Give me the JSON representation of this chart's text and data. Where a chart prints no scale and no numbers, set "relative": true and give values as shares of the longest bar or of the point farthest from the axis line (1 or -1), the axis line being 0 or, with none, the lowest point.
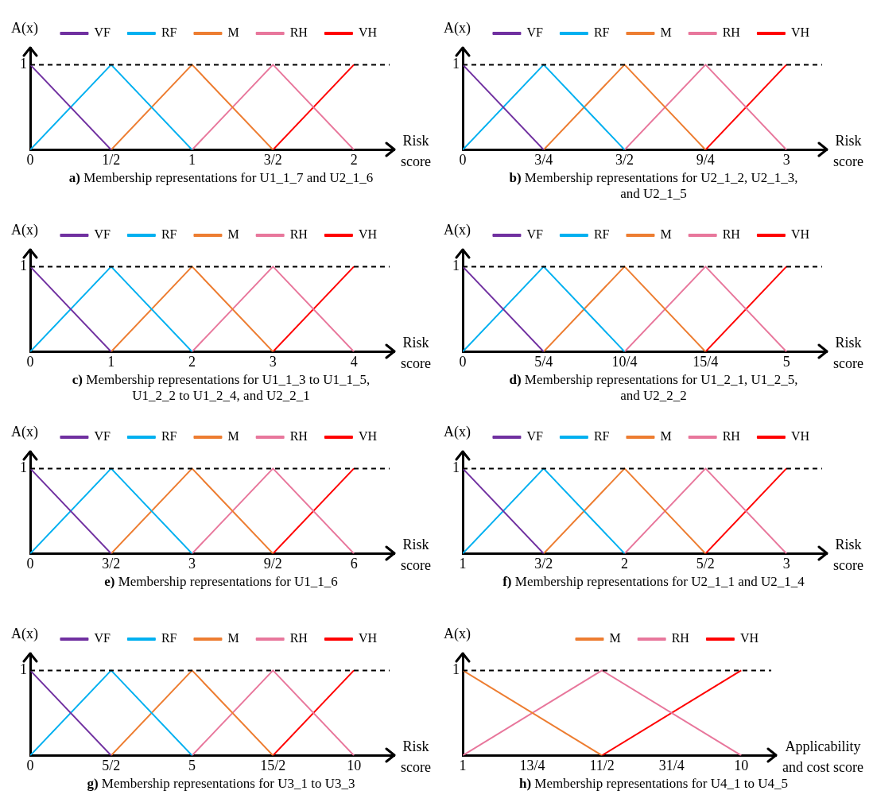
{
  "chart_data": [
    {
      "type": "line",
      "title": "a) Membership representations for U1_1_7 and U2_1_6",
      "xlabel": "Risk score",
      "ylabel": "A(x)",
      "relative": true,
      "legend": "top",
      "marker": "none",
      "grid": false,
      "xlim": [
        0,
        2.25
      ],
      "xticks": [
        0,
        {
          "value": 0.5,
          "label": "1/2"
        },
        1,
        {
          "value": 1.5,
          "label": "3/2"
        },
        2
      ],
      "ref_lines": [
        {
          "axis": "y",
          "value": 1,
          "label": "1",
          "line_style": "dashed",
          "color": "#000000"
        }
      ],
      "series": [
        {
          "name": "VF",
          "color": "#7030a0",
          "x": [
            0,
            0.5
          ],
          "values": [
            1,
            0
          ]
        },
        {
          "name": "RF",
          "color": "#00b0f0",
          "x": [
            0,
            0.5,
            1
          ],
          "values": [
            0,
            1,
            0
          ]
        },
        {
          "name": "M",
          "color": "#ed7d31",
          "x": [
            0.5,
            1,
            1.5
          ],
          "values": [
            0,
            1,
            0
          ]
        },
        {
          "name": "RH",
          "color": "#e8779c",
          "x": [
            1,
            1.5,
            2
          ],
          "values": [
            0,
            1,
            0
          ]
        },
        {
          "name": "VH",
          "color": "#ff0000",
          "x": [
            1.5,
            2
          ],
          "values": [
            0,
            1
          ]
        }
      ]
    },
    {
      "type": "line",
      "title": "b) Membership representations for U2_1_2, U2_1_3, and U2_1_5",
      "xlabel": "Risk score",
      "ylabel": "A(x)",
      "relative": true,
      "legend": "top",
      "marker": "none",
      "grid": false,
      "xlim": [
        0,
        3.375
      ],
      "xticks": [
        0,
        {
          "value": 0.75,
          "label": "3/4"
        },
        {
          "value": 1.5,
          "label": "3/2"
        },
        {
          "value": 2.25,
          "label": "9/4"
        },
        3
      ],
      "ref_lines": [
        {
          "axis": "y",
          "value": 1,
          "label": "1",
          "line_style": "dashed",
          "color": "#000000"
        }
      ],
      "series": [
        {
          "name": "VF",
          "color": "#7030a0",
          "x": [
            0,
            0.75
          ],
          "values": [
            1,
            0
          ]
        },
        {
          "name": "RF",
          "color": "#00b0f0",
          "x": [
            0,
            0.75,
            1.5
          ],
          "values": [
            0,
            1,
            0
          ]
        },
        {
          "name": "M",
          "color": "#ed7d31",
          "x": [
            0.75,
            1.5,
            2.25
          ],
          "values": [
            0,
            1,
            0
          ]
        },
        {
          "name": "RH",
          "color": "#e8779c",
          "x": [
            1.5,
            2.25,
            3
          ],
          "values": [
            0,
            1,
            0
          ]
        },
        {
          "name": "VH",
          "color": "#ff0000",
          "x": [
            2.25,
            3
          ],
          "values": [
            0,
            1
          ]
        }
      ]
    },
    {
      "type": "line",
      "title": "c) Membership representations for U1_1_3 to U1_1_5, U1_2_2 to U1_2_4, and U2_2_1",
      "xlabel": "Risk score",
      "ylabel": "A(x)",
      "relative": true,
      "legend": "top",
      "marker": "none",
      "grid": false,
      "xlim": [
        0,
        4.5
      ],
      "xticks": [
        0,
        1,
        2,
        3,
        4
      ],
      "ref_lines": [
        {
          "axis": "y",
          "value": 1,
          "label": "1",
          "line_style": "dashed",
          "color": "#000000"
        }
      ],
      "series": [
        {
          "name": "VF",
          "color": "#7030a0",
          "x": [
            0,
            1
          ],
          "values": [
            1,
            0
          ]
        },
        {
          "name": "RF",
          "color": "#00b0f0",
          "x": [
            0,
            1,
            2
          ],
          "values": [
            0,
            1,
            0
          ]
        },
        {
          "name": "M",
          "color": "#ed7d31",
          "x": [
            1,
            2,
            3
          ],
          "values": [
            0,
            1,
            0
          ]
        },
        {
          "name": "RH",
          "color": "#e8779c",
          "x": [
            2,
            3,
            4
          ],
          "values": [
            0,
            1,
            0
          ]
        },
        {
          "name": "VH",
          "color": "#ff0000",
          "x": [
            3,
            4
          ],
          "values": [
            0,
            1
          ]
        }
      ]
    },
    {
      "type": "line",
      "title": "d) Membership representations for U1_2_1, U1_2_5, and U2_2_2",
      "xlabel": "Risk score",
      "ylabel": "A(x)",
      "relative": true,
      "legend": "top",
      "marker": "none",
      "grid": false,
      "xlim": [
        0,
        5.625
      ],
      "xticks": [
        0,
        {
          "value": 1.25,
          "label": "5/4"
        },
        {
          "value": 2.5,
          "label": "10/4"
        },
        {
          "value": 3.75,
          "label": "15/4"
        },
        5
      ],
      "ref_lines": [
        {
          "axis": "y",
          "value": 1,
          "label": "1",
          "line_style": "dashed",
          "color": "#000000"
        }
      ],
      "series": [
        {
          "name": "VF",
          "color": "#7030a0",
          "x": [
            0,
            1.25
          ],
          "values": [
            1,
            0
          ]
        },
        {
          "name": "RF",
          "color": "#00b0f0",
          "x": [
            0,
            1.25,
            2.5
          ],
          "values": [
            0,
            1,
            0
          ]
        },
        {
          "name": "M",
          "color": "#ed7d31",
          "x": [
            1.25,
            2.5,
            3.75
          ],
          "values": [
            0,
            1,
            0
          ]
        },
        {
          "name": "RH",
          "color": "#e8779c",
          "x": [
            2.5,
            3.75,
            5
          ],
          "values": [
            0,
            1,
            0
          ]
        },
        {
          "name": "VH",
          "color": "#ff0000",
          "x": [
            3.75,
            5
          ],
          "values": [
            0,
            1
          ]
        }
      ]
    },
    {
      "type": "line",
      "title": "e) Membership representations for U1_1_6",
      "xlabel": "Risk score",
      "ylabel": "A(x)",
      "relative": true,
      "legend": "top",
      "marker": "none",
      "grid": false,
      "xlim": [
        0,
        6.75
      ],
      "xticks": [
        0,
        {
          "value": 1.5,
          "label": "3/2"
        },
        3,
        {
          "value": 4.5,
          "label": "9/2"
        },
        6
      ],
      "ref_lines": [
        {
          "axis": "y",
          "value": 1,
          "label": "1",
          "line_style": "dashed",
          "color": "#000000"
        }
      ],
      "series": [
        {
          "name": "VF",
          "color": "#7030a0",
          "x": [
            0,
            1.5
          ],
          "values": [
            1,
            0
          ]
        },
        {
          "name": "RF",
          "color": "#00b0f0",
          "x": [
            0,
            1.5,
            3
          ],
          "values": [
            0,
            1,
            0
          ]
        },
        {
          "name": "M",
          "color": "#ed7d31",
          "x": [
            1.5,
            3,
            4.5
          ],
          "values": [
            0,
            1,
            0
          ]
        },
        {
          "name": "RH",
          "color": "#e8779c",
          "x": [
            3,
            4.5,
            6
          ],
          "values": [
            0,
            1,
            0
          ]
        },
        {
          "name": "VH",
          "color": "#ff0000",
          "x": [
            4.5,
            6
          ],
          "values": [
            0,
            1
          ]
        }
      ]
    },
    {
      "type": "line",
      "title": "f) Membership representations for U2_1_1 and U2_1_4",
      "xlabel": "Risk score",
      "ylabel": "A(x)",
      "relative": true,
      "legend": "top",
      "marker": "none",
      "grid": false,
      "xlim": [
        1,
        3.25
      ],
      "xticks": [
        1,
        {
          "value": 1.5,
          "label": "3/2"
        },
        2,
        {
          "value": 2.5,
          "label": "5/2"
        },
        3
      ],
      "ref_lines": [
        {
          "axis": "y",
          "value": 1,
          "label": "1",
          "line_style": "dashed",
          "color": "#000000"
        }
      ],
      "series": [
        {
          "name": "VF",
          "color": "#7030a0",
          "x": [
            1,
            1.5
          ],
          "values": [
            1,
            0
          ]
        },
        {
          "name": "RF",
          "color": "#00b0f0",
          "x": [
            1,
            1.5,
            2
          ],
          "values": [
            0,
            1,
            0
          ]
        },
        {
          "name": "M",
          "color": "#ed7d31",
          "x": [
            1.5,
            2,
            2.5
          ],
          "values": [
            0,
            1,
            0
          ]
        },
        {
          "name": "RH",
          "color": "#e8779c",
          "x": [
            2,
            2.5,
            3
          ],
          "values": [
            0,
            1,
            0
          ]
        },
        {
          "name": "VH",
          "color": "#ff0000",
          "x": [
            2.5,
            3
          ],
          "values": [
            0,
            1
          ]
        }
      ]
    },
    {
      "type": "line",
      "title": "g) Membership representations for U3_1 to U3_3",
      "xlabel": "Risk score",
      "ylabel": "A(x)",
      "relative": true,
      "legend": "top",
      "marker": "none",
      "grid": false,
      "xlim": [
        0,
        11.25
      ],
      "xticks": [
        0,
        {
          "value": 2.5,
          "label": "5/2"
        },
        5,
        {
          "value": 7.5,
          "label": "15/2"
        },
        10
      ],
      "ref_lines": [
        {
          "axis": "y",
          "value": 1,
          "label": "1",
          "line_style": "dashed",
          "color": "#000000"
        }
      ],
      "series": [
        {
          "name": "VF",
          "color": "#7030a0",
          "x": [
            0,
            2.5
          ],
          "values": [
            1,
            0
          ]
        },
        {
          "name": "RF",
          "color": "#00b0f0",
          "x": [
            0,
            2.5,
            5
          ],
          "values": [
            0,
            1,
            0
          ]
        },
        {
          "name": "M",
          "color": "#ed7d31",
          "x": [
            2.5,
            5,
            7.5
          ],
          "values": [
            0,
            1,
            0
          ]
        },
        {
          "name": "RH",
          "color": "#e8779c",
          "x": [
            5,
            7.5,
            10
          ],
          "values": [
            0,
            1,
            0
          ]
        },
        {
          "name": "VH",
          "color": "#ff0000",
          "x": [
            7.5,
            10
          ],
          "values": [
            0,
            1
          ]
        }
      ]
    },
    {
      "type": "line",
      "title": "h) Membership representations for U4_1 to U4_5",
      "xlabel": "Applicability and cost score",
      "ylabel": "A(x)",
      "relative": true,
      "legend": "top",
      "marker": "none",
      "grid": false,
      "xlim": [
        1,
        11.125
      ],
      "xticks": [
        1,
        {
          "value": 3.25,
          "label": "13/4"
        },
        {
          "value": 5.5,
          "label": "11/2"
        },
        {
          "value": 7.75,
          "label": "31/4"
        },
        10
      ],
      "ref_lines": [
        {
          "axis": "y",
          "value": 1,
          "label": "1",
          "line_style": "dashed",
          "color": "#000000"
        }
      ],
      "series": [
        {
          "name": "M",
          "color": "#ed7d31",
          "x": [
            1,
            5.5
          ],
          "values": [
            1,
            0
          ]
        },
        {
          "name": "RH",
          "color": "#e8779c",
          "x": [
            1,
            5.5,
            10
          ],
          "values": [
            0,
            1,
            0
          ]
        },
        {
          "name": "VH",
          "color": "#ff0000",
          "x": [
            5.5,
            10
          ],
          "values": [
            0,
            1
          ]
        }
      ]
    }
  ]
}
